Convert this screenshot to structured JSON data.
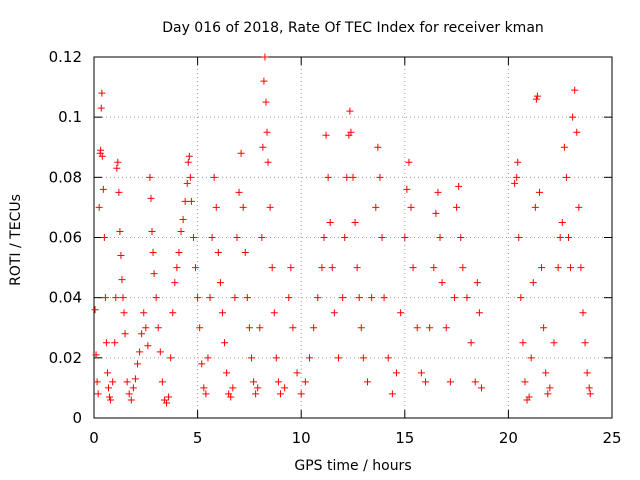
{
  "chart_data": {
    "type": "scatter",
    "title": "Day 016 of 2018, Rate Of TEC Index for receiver kman",
    "xlabel": "GPS time / hours",
    "ylabel": "ROTI / TECUs",
    "xlim": [
      0,
      25
    ],
    "ylim": [
      0,
      0.12
    ],
    "xticks": [
      0,
      5,
      10,
      15,
      20,
      25
    ],
    "xtick_labels": [
      "0",
      "5",
      "10",
      "15",
      "20",
      "25"
    ],
    "yticks": [
      0,
      0.02,
      0.04,
      0.06,
      0.08,
      0.1,
      0.12
    ],
    "ytick_labels": [
      "0",
      "0.02",
      "0.04",
      "0.06",
      "0.08",
      "0.1",
      "0.12"
    ],
    "grid": true,
    "marker": "+",
    "color": "#ff0000",
    "series": [
      {
        "name": "ROTI",
        "points": [
          [
            0.05,
            0.036
          ],
          [
            0.1,
            0.021
          ],
          [
            0.15,
            0.012
          ],
          [
            0.2,
            0.008
          ],
          [
            0.25,
            0.07
          ],
          [
            0.3,
            0.088
          ],
          [
            0.32,
            0.089
          ],
          [
            0.35,
            0.103
          ],
          [
            0.38,
            0.108
          ],
          [
            0.4,
            0.087
          ],
          [
            0.45,
            0.076
          ],
          [
            0.5,
            0.06
          ],
          [
            0.55,
            0.04
          ],
          [
            0.6,
            0.025
          ],
          [
            0.65,
            0.015
          ],
          [
            0.7,
            0.01
          ],
          [
            0.75,
            0.007
          ],
          [
            0.8,
            0.006
          ],
          [
            0.9,
            0.012
          ],
          [
            1.0,
            0.025
          ],
          [
            1.05,
            0.04
          ],
          [
            1.1,
            0.083
          ],
          [
            1.15,
            0.085
          ],
          [
            1.2,
            0.075
          ],
          [
            1.25,
            0.062
          ],
          [
            1.3,
            0.054
          ],
          [
            1.35,
            0.046
          ],
          [
            1.4,
            0.04
          ],
          [
            1.45,
            0.035
          ],
          [
            1.5,
            0.028
          ],
          [
            1.6,
            0.012
          ],
          [
            1.7,
            0.008
          ],
          [
            1.8,
            0.006
          ],
          [
            1.9,
            0.01
          ],
          [
            2.0,
            0.013
          ],
          [
            2.1,
            0.018
          ],
          [
            2.2,
            0.022
          ],
          [
            2.3,
            0.028
          ],
          [
            2.4,
            0.035
          ],
          [
            2.5,
            0.03
          ],
          [
            2.6,
            0.024
          ],
          [
            2.7,
            0.08
          ],
          [
            2.75,
            0.073
          ],
          [
            2.8,
            0.062
          ],
          [
            2.85,
            0.055
          ],
          [
            2.9,
            0.048
          ],
          [
            3.0,
            0.04
          ],
          [
            3.1,
            0.03
          ],
          [
            3.2,
            0.022
          ],
          [
            3.3,
            0.012
          ],
          [
            3.4,
            0.006
          ],
          [
            3.5,
            0.005
          ],
          [
            3.6,
            0.007
          ],
          [
            3.7,
            0.02
          ],
          [
            3.8,
            0.035
          ],
          [
            3.9,
            0.045
          ],
          [
            4.0,
            0.05
          ],
          [
            4.1,
            0.055
          ],
          [
            4.2,
            0.062
          ],
          [
            4.3,
            0.066
          ],
          [
            4.4,
            0.072
          ],
          [
            4.5,
            0.078
          ],
          [
            4.55,
            0.085
          ],
          [
            4.6,
            0.087
          ],
          [
            4.65,
            0.08
          ],
          [
            4.7,
            0.072
          ],
          [
            4.8,
            0.06
          ],
          [
            4.9,
            0.05
          ],
          [
            5.0,
            0.04
          ],
          [
            5.1,
            0.03
          ],
          [
            5.2,
            0.018
          ],
          [
            5.3,
            0.01
          ],
          [
            5.4,
            0.008
          ],
          [
            5.5,
            0.02
          ],
          [
            5.6,
            0.04
          ],
          [
            5.7,
            0.06
          ],
          [
            5.8,
            0.08
          ],
          [
            5.9,
            0.07
          ],
          [
            6.0,
            0.055
          ],
          [
            6.1,
            0.045
          ],
          [
            6.2,
            0.035
          ],
          [
            6.3,
            0.025
          ],
          [
            6.4,
            0.015
          ],
          [
            6.5,
            0.008
          ],
          [
            6.6,
            0.007
          ],
          [
            6.7,
            0.01
          ],
          [
            6.8,
            0.04
          ],
          [
            6.9,
            0.06
          ],
          [
            7.0,
            0.075
          ],
          [
            7.1,
            0.088
          ],
          [
            7.2,
            0.07
          ],
          [
            7.3,
            0.055
          ],
          [
            7.4,
            0.04
          ],
          [
            7.5,
            0.03
          ],
          [
            7.6,
            0.02
          ],
          [
            7.7,
            0.012
          ],
          [
            7.8,
            0.008
          ],
          [
            7.9,
            0.01
          ],
          [
            8.0,
            0.03
          ],
          [
            8.1,
            0.06
          ],
          [
            8.15,
            0.09
          ],
          [
            8.2,
            0.112
          ],
          [
            8.25,
            0.12
          ],
          [
            8.3,
            0.105
          ],
          [
            8.35,
            0.095
          ],
          [
            8.4,
            0.085
          ],
          [
            8.5,
            0.07
          ],
          [
            8.6,
            0.05
          ],
          [
            8.7,
            0.035
          ],
          [
            8.8,
            0.02
          ],
          [
            8.9,
            0.012
          ],
          [
            9.0,
            0.008
          ],
          [
            9.2,
            0.01
          ],
          [
            9.4,
            0.04
          ],
          [
            9.5,
            0.05
          ],
          [
            9.6,
            0.03
          ],
          [
            9.8,
            0.015
          ],
          [
            10.0,
            0.008
          ],
          [
            10.2,
            0.012
          ],
          [
            10.4,
            0.02
          ],
          [
            10.6,
            0.03
          ],
          [
            10.8,
            0.04
          ],
          [
            11.0,
            0.05
          ],
          [
            11.1,
            0.06
          ],
          [
            11.2,
            0.094
          ],
          [
            11.3,
            0.08
          ],
          [
            11.4,
            0.065
          ],
          [
            11.5,
            0.05
          ],
          [
            11.6,
            0.035
          ],
          [
            11.8,
            0.02
          ],
          [
            12.0,
            0.04
          ],
          [
            12.1,
            0.06
          ],
          [
            12.2,
            0.08
          ],
          [
            12.3,
            0.094
          ],
          [
            12.35,
            0.102
          ],
          [
            12.4,
            0.095
          ],
          [
            12.5,
            0.08
          ],
          [
            12.6,
            0.065
          ],
          [
            12.7,
            0.05
          ],
          [
            12.8,
            0.04
          ],
          [
            12.9,
            0.03
          ],
          [
            13.0,
            0.02
          ],
          [
            13.2,
            0.012
          ],
          [
            13.4,
            0.04
          ],
          [
            13.6,
            0.07
          ],
          [
            13.7,
            0.09
          ],
          [
            13.8,
            0.08
          ],
          [
            13.9,
            0.06
          ],
          [
            14.0,
            0.04
          ],
          [
            14.2,
            0.02
          ],
          [
            14.4,
            0.008
          ],
          [
            14.6,
            0.015
          ],
          [
            14.8,
            0.035
          ],
          [
            15.0,
            0.06
          ],
          [
            15.1,
            0.076
          ],
          [
            15.2,
            0.085
          ],
          [
            15.3,
            0.07
          ],
          [
            15.4,
            0.05
          ],
          [
            15.6,
            0.03
          ],
          [
            15.8,
            0.015
          ],
          [
            16.0,
            0.012
          ],
          [
            16.2,
            0.03
          ],
          [
            16.4,
            0.05
          ],
          [
            16.5,
            0.068
          ],
          [
            16.6,
            0.075
          ],
          [
            16.7,
            0.06
          ],
          [
            16.8,
            0.045
          ],
          [
            17.0,
            0.03
          ],
          [
            17.2,
            0.012
          ],
          [
            17.4,
            0.04
          ],
          [
            17.5,
            0.07
          ],
          [
            17.6,
            0.077
          ],
          [
            17.7,
            0.06
          ],
          [
            17.8,
            0.05
          ],
          [
            18.0,
            0.04
          ],
          [
            18.2,
            0.025
          ],
          [
            18.4,
            0.012
          ],
          [
            18.5,
            0.045
          ],
          [
            18.6,
            0.035
          ],
          [
            18.7,
            0.01
          ],
          [
            20.3,
            0.078
          ],
          [
            20.4,
            0.08
          ],
          [
            20.45,
            0.085
          ],
          [
            20.5,
            0.06
          ],
          [
            20.6,
            0.04
          ],
          [
            20.7,
            0.025
          ],
          [
            20.8,
            0.012
          ],
          [
            20.9,
            0.006
          ],
          [
            21.0,
            0.007
          ],
          [
            21.1,
            0.02
          ],
          [
            21.2,
            0.045
          ],
          [
            21.3,
            0.07
          ],
          [
            21.35,
            0.106
          ],
          [
            21.4,
            0.107
          ],
          [
            21.5,
            0.075
          ],
          [
            21.6,
            0.05
          ],
          [
            21.7,
            0.03
          ],
          [
            21.8,
            0.015
          ],
          [
            21.9,
            0.008
          ],
          [
            22.0,
            0.01
          ],
          [
            22.2,
            0.025
          ],
          [
            22.4,
            0.05
          ],
          [
            22.5,
            0.06
          ],
          [
            22.6,
            0.065
          ],
          [
            22.7,
            0.09
          ],
          [
            22.8,
            0.08
          ],
          [
            22.9,
            0.06
          ],
          [
            23.0,
            0.05
          ],
          [
            23.1,
            0.1
          ],
          [
            23.2,
            0.109
          ],
          [
            23.3,
            0.095
          ],
          [
            23.4,
            0.07
          ],
          [
            23.5,
            0.05
          ],
          [
            23.6,
            0.035
          ],
          [
            23.7,
            0.025
          ],
          [
            23.8,
            0.015
          ],
          [
            23.9,
            0.01
          ],
          [
            23.95,
            0.008
          ]
        ]
      }
    ]
  }
}
